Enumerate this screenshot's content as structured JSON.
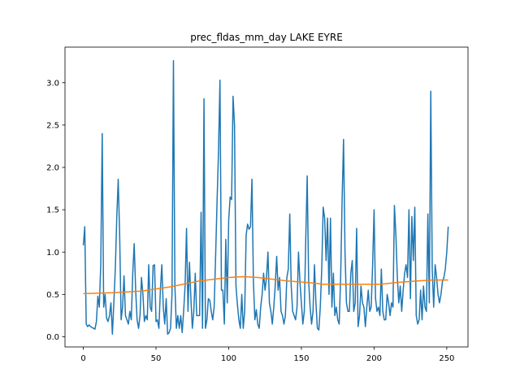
{
  "chart_data": {
    "type": "line",
    "title": "prec_fldas_mm_day LAKE EYRE",
    "xlabel": "",
    "ylabel": "",
    "xlim": [
      -12.6,
      264.6
    ],
    "ylim": [
      -0.12,
      3.42
    ],
    "xticks": [
      0,
      50,
      100,
      150,
      200,
      250
    ],
    "yticks": [
      0.0,
      0.5,
      1.0,
      1.5,
      2.0,
      2.5,
      3.0
    ],
    "grid": false,
    "series": [
      {
        "color": "#1f77b4",
        "points": [
          [
            0,
            1.08
          ],
          [
            1,
            1.3
          ],
          [
            2,
            0.15
          ],
          [
            3,
            0.12
          ],
          [
            4,
            0.14
          ],
          [
            5,
            0.12
          ],
          [
            6,
            0.11
          ],
          [
            7,
            0.1
          ],
          [
            8,
            0.09
          ],
          [
            9,
            0.18
          ],
          [
            10,
            0.48
          ],
          [
            11,
            0.35
          ],
          [
            12,
            0.85
          ],
          [
            13,
            2.4
          ],
          [
            14,
            0.35
          ],
          [
            15,
            0.5
          ],
          [
            16,
            0.22
          ],
          [
            17,
            0.18
          ],
          [
            18,
            0.25
          ],
          [
            19,
            0.4
          ],
          [
            20,
            0.03
          ],
          [
            21,
            0.4
          ],
          [
            22,
            0.8
          ],
          [
            23,
            1.4
          ],
          [
            24,
            1.86
          ],
          [
            25,
            1.2
          ],
          [
            26,
            0.2
          ],
          [
            27,
            0.35
          ],
          [
            28,
            0.72
          ],
          [
            29,
            0.25
          ],
          [
            30,
            0.2
          ],
          [
            31,
            0.15
          ],
          [
            32,
            0.3
          ],
          [
            33,
            0.2
          ],
          [
            34,
            0.75
          ],
          [
            35,
            1.1
          ],
          [
            36,
            0.55
          ],
          [
            37,
            0.2
          ],
          [
            38,
            0.1
          ],
          [
            39,
            0.25
          ],
          [
            40,
            0.7
          ],
          [
            41,
            0.5
          ],
          [
            42,
            0.18
          ],
          [
            43,
            0.25
          ],
          [
            44,
            0.2
          ],
          [
            45,
            0.85
          ],
          [
            46,
            0.35
          ],
          [
            47,
            0.3
          ],
          [
            48,
            0.84
          ],
          [
            49,
            0.85
          ],
          [
            50,
            0.18
          ],
          [
            51,
            0.2
          ],
          [
            52,
            0.1
          ],
          [
            53,
            0.55
          ],
          [
            54,
            0.85
          ],
          [
            55,
            0.35
          ],
          [
            56,
            0.15
          ],
          [
            57,
            0.45
          ],
          [
            58,
            0.03
          ],
          [
            59,
            0.05
          ],
          [
            60,
            0.1
          ],
          [
            61,
            0.5
          ],
          [
            62,
            3.26
          ],
          [
            63,
            0.6
          ],
          [
            64,
            0.1
          ],
          [
            65,
            0.25
          ],
          [
            66,
            0.1
          ],
          [
            67,
            0.25
          ],
          [
            68,
            0.05
          ],
          [
            69,
            0.3
          ],
          [
            70,
            0.6
          ],
          [
            71,
            1.28
          ],
          [
            72,
            0.3
          ],
          [
            73,
            0.88
          ],
          [
            74,
            0.45
          ],
          [
            75,
            0.1
          ],
          [
            76,
            0.3
          ],
          [
            77,
            0.75
          ],
          [
            78,
            0.25
          ],
          [
            79,
            0.25
          ],
          [
            80,
            0.25
          ],
          [
            81,
            1.47
          ],
          [
            82,
            0.1
          ],
          [
            83,
            2.81
          ],
          [
            84,
            0.1
          ],
          [
            85,
            0.2
          ],
          [
            86,
            0.45
          ],
          [
            87,
            0.43
          ],
          [
            88,
            0.3
          ],
          [
            89,
            0.2
          ],
          [
            90,
            0.35
          ],
          [
            91,
            0.95
          ],
          [
            92,
            1.6
          ],
          [
            93,
            2.2
          ],
          [
            94,
            3.03
          ],
          [
            95,
            0.55
          ],
          [
            96,
            0.55
          ],
          [
            97,
            0.15
          ],
          [
            98,
            1.15
          ],
          [
            99,
            0.4
          ],
          [
            100,
            1.38
          ],
          [
            101,
            1.65
          ],
          [
            102,
            1.62
          ],
          [
            103,
            2.84
          ],
          [
            104,
            2.5
          ],
          [
            105,
            0.6
          ],
          [
            106,
            0.38
          ],
          [
            107,
            0.2
          ],
          [
            108,
            0.1
          ],
          [
            109,
            0.5
          ],
          [
            110,
            0.1
          ],
          [
            111,
            0.3
          ],
          [
            112,
            1.2
          ],
          [
            113,
            1.33
          ],
          [
            114,
            1.27
          ],
          [
            115,
            1.3
          ],
          [
            116,
            1.86
          ],
          [
            117,
            0.65
          ],
          [
            118,
            0.2
          ],
          [
            119,
            0.32
          ],
          [
            120,
            0.15
          ],
          [
            121,
            0.1
          ],
          [
            122,
            0.35
          ],
          [
            123,
            0.5
          ],
          [
            124,
            0.75
          ],
          [
            125,
            0.55
          ],
          [
            126,
            0.7
          ],
          [
            127,
            1.0
          ],
          [
            128,
            0.4
          ],
          [
            129,
            0.3
          ],
          [
            130,
            0.15
          ],
          [
            131,
            0.35
          ],
          [
            132,
            0.6
          ],
          [
            133,
            0.95
          ],
          [
            134,
            0.55
          ],
          [
            135,
            0.7
          ],
          [
            136,
            0.3
          ],
          [
            137,
            0.25
          ],
          [
            138,
            0.15
          ],
          [
            139,
            0.25
          ],
          [
            140,
            0.7
          ],
          [
            141,
            0.8
          ],
          [
            142,
            1.45
          ],
          [
            143,
            0.6
          ],
          [
            144,
            0.3
          ],
          [
            145,
            0.25
          ],
          [
            146,
            0.2
          ],
          [
            147,
            0.35
          ],
          [
            148,
            1.0
          ],
          [
            149,
            0.65
          ],
          [
            150,
            0.4
          ],
          [
            151,
            0.15
          ],
          [
            152,
            0.3
          ],
          [
            153,
            1.15
          ],
          [
            154,
            1.9
          ],
          [
            155,
            0.65
          ],
          [
            156,
            0.35
          ],
          [
            157,
            0.15
          ],
          [
            158,
            0.3
          ],
          [
            159,
            0.85
          ],
          [
            160,
            0.4
          ],
          [
            161,
            0.1
          ],
          [
            162,
            0.08
          ],
          [
            163,
            0.35
          ],
          [
            164,
            0.8
          ],
          [
            165,
            1.53
          ],
          [
            166,
            1.4
          ],
          [
            167,
            0.9
          ],
          [
            168,
            1.4
          ],
          [
            169,
            0.5
          ],
          [
            170,
            1.4
          ],
          [
            171,
            0.35
          ],
          [
            172,
            0.75
          ],
          [
            173,
            0.25
          ],
          [
            174,
            0.35
          ],
          [
            175,
            0.2
          ],
          [
            176,
            0.15
          ],
          [
            177,
            0.7
          ],
          [
            178,
            1.6
          ],
          [
            179,
            2.33
          ],
          [
            180,
            1.0
          ],
          [
            181,
            0.4
          ],
          [
            182,
            0.3
          ],
          [
            183,
            0.3
          ],
          [
            184,
            0.75
          ],
          [
            185,
            0.9
          ],
          [
            186,
            0.3
          ],
          [
            187,
            0.4
          ],
          [
            188,
            1.28
          ],
          [
            189,
            0.12
          ],
          [
            190,
            0.25
          ],
          [
            191,
            0.6
          ],
          [
            192,
            0.4
          ],
          [
            193,
            0.35
          ],
          [
            194,
            0.12
          ],
          [
            195,
            0.35
          ],
          [
            196,
            0.55
          ],
          [
            197,
            0.3
          ],
          [
            198,
            0.35
          ],
          [
            199,
            0.85
          ],
          [
            200,
            1.5
          ],
          [
            201,
            0.45
          ],
          [
            202,
            0.3
          ],
          [
            203,
            0.35
          ],
          [
            204,
            0.25
          ],
          [
            205,
            0.8
          ],
          [
            206,
            0.3
          ],
          [
            207,
            0.2
          ],
          [
            208,
            0.2
          ],
          [
            209,
            0.5
          ],
          [
            210,
            0.4
          ],
          [
            211,
            0.25
          ],
          [
            212,
            0.4
          ],
          [
            213,
            0.35
          ],
          [
            214,
            1.55
          ],
          [
            215,
            1.2
          ],
          [
            216,
            0.7
          ],
          [
            217,
            0.4
          ],
          [
            218,
            0.6
          ],
          [
            219,
            0.3
          ],
          [
            220,
            0.55
          ],
          [
            221,
            0.75
          ],
          [
            222,
            0.85
          ],
          [
            223,
            0.7
          ],
          [
            224,
            1.5
          ],
          [
            225,
            0.45
          ],
          [
            226,
            1.42
          ],
          [
            227,
            0.9
          ],
          [
            228,
            1.53
          ],
          [
            229,
            0.25
          ],
          [
            230,
            0.15
          ],
          [
            231,
            0.2
          ],
          [
            232,
            0.55
          ],
          [
            233,
            0.2
          ],
          [
            234,
            0.6
          ],
          [
            235,
            0.35
          ],
          [
            236,
            0.3
          ],
          [
            237,
            1.45
          ],
          [
            238,
            0.4
          ],
          [
            239,
            2.9
          ],
          [
            240,
            0.8
          ],
          [
            241,
            0.35
          ],
          [
            242,
            0.85
          ],
          [
            243,
            0.7
          ],
          [
            244,
            0.5
          ],
          [
            245,
            0.4
          ],
          [
            246,
            0.5
          ],
          [
            247,
            0.65
          ],
          [
            248,
            0.7
          ],
          [
            249,
            0.8
          ],
          [
            250,
            1.0
          ],
          [
            251,
            1.3
          ]
        ]
      },
      {
        "color": "#ff7f0e",
        "points": [
          [
            0,
            0.51
          ],
          [
            20,
            0.52
          ],
          [
            40,
            0.54
          ],
          [
            60,
            0.59
          ],
          [
            80,
            0.66
          ],
          [
            100,
            0.7
          ],
          [
            110,
            0.71
          ],
          [
            120,
            0.7
          ],
          [
            130,
            0.68
          ],
          [
            140,
            0.66
          ],
          [
            155,
            0.64
          ],
          [
            165,
            0.62
          ],
          [
            180,
            0.62
          ],
          [
            195,
            0.62
          ],
          [
            205,
            0.62
          ],
          [
            215,
            0.64
          ],
          [
            230,
            0.66
          ],
          [
            240,
            0.67
          ],
          [
            251,
            0.67
          ]
        ]
      }
    ]
  }
}
